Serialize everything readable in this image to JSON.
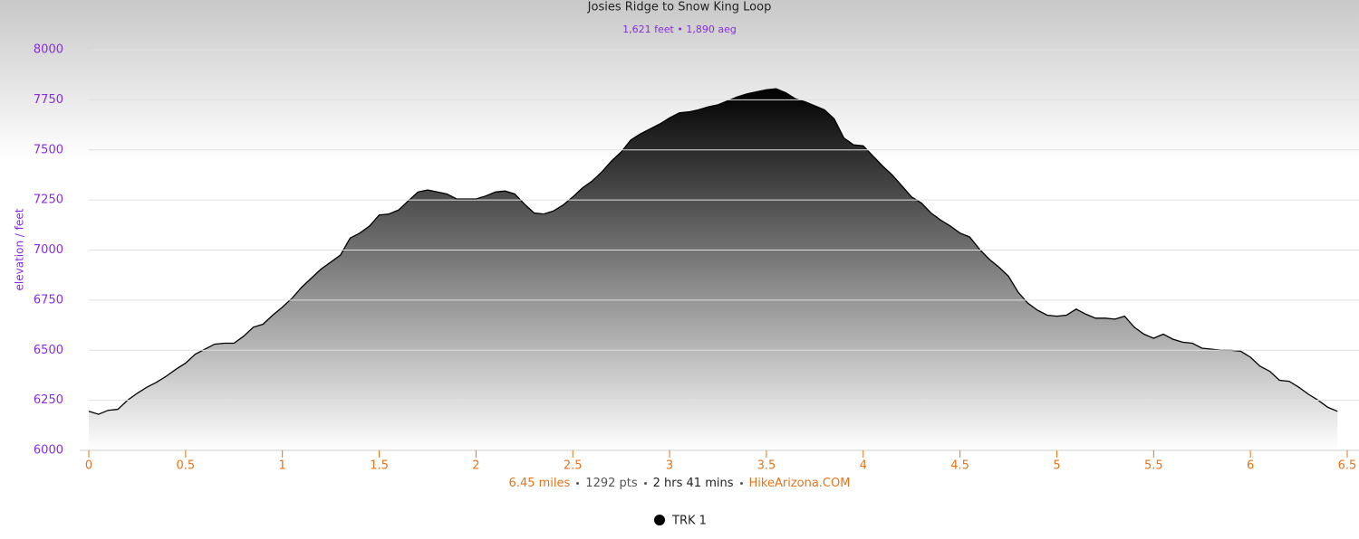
{
  "chart_data": {
    "type": "area",
    "title": "Josies Ridge to Snow King Loop",
    "subtitle": "1,621 feet • 1,890 aeg",
    "y_label": "elevation / feet",
    "footer": [
      "6.45 miles",
      "1292 pts",
      "2 hrs 41 mins",
      "HikeArizona.COM"
    ],
    "xlim": [
      0,
      6.5
    ],
    "xticks": [
      0,
      0.5,
      1,
      1.5,
      2,
      2.5,
      3,
      3.5,
      4,
      4.5,
      5,
      5.5,
      6,
      6.5
    ],
    "ylim": [
      6000,
      8000
    ],
    "yticks": [
      6000,
      6250,
      6500,
      6750,
      7000,
      7250,
      7500,
      7750,
      8000
    ],
    "grid": true,
    "legend": "bottom",
    "x": [
      0,
      0.05,
      0.1,
      0.15,
      0.2,
      0.25,
      0.3,
      0.35,
      0.4,
      0.45,
      0.5,
      0.55,
      0.6,
      0.65,
      0.7,
      0.75,
      0.8,
      0.85,
      0.9,
      0.95,
      1,
      1.05,
      1.1,
      1.15,
      1.2,
      1.25,
      1.3,
      1.35,
      1.4,
      1.45,
      1.5,
      1.55,
      1.6,
      1.65,
      1.7,
      1.75,
      1.8,
      1.85,
      1.9,
      1.95,
      2,
      2.05,
      2.1,
      2.15,
      2.2,
      2.25,
      2.3,
      2.35,
      2.4,
      2.45,
      2.5,
      2.55,
      2.6,
      2.65,
      2.7,
      2.75,
      2.8,
      2.85,
      2.9,
      2.95,
      3,
      3.05,
      3.1,
      3.15,
      3.2,
      3.25,
      3.3,
      3.35,
      3.4,
      3.45,
      3.5,
      3.55,
      3.6,
      3.65,
      3.7,
      3.75,
      3.8,
      3.85,
      3.9,
      3.95,
      4,
      4.05,
      4.1,
      4.15,
      4.2,
      4.25,
      4.3,
      4.35,
      4.4,
      4.45,
      4.5,
      4.55,
      4.6,
      4.65,
      4.7,
      4.75,
      4.8,
      4.85,
      4.9,
      4.95,
      5,
      5.05,
      5.1,
      5.15,
      5.2,
      5.25,
      5.3,
      5.35,
      5.4,
      5.45,
      5.5,
      5.55,
      5.6,
      5.65,
      5.7,
      5.75,
      5.8,
      5.85,
      5.9,
      5.95,
      6,
      6.05,
      6.1,
      6.15,
      6.2,
      6.25,
      6.3,
      6.35,
      6.4,
      6.45
    ],
    "series": [
      {
        "name": "TRK 1",
        "color": "#000000",
        "values": [
          6195,
          6180,
          6200,
          6205,
          6250,
          6285,
          6315,
          6340,
          6370,
          6405,
          6435,
          6480,
          6505,
          6530,
          6535,
          6535,
          6570,
          6615,
          6630,
          6675,
          6715,
          6760,
          6815,
          6860,
          6905,
          6940,
          6975,
          7060,
          7085,
          7120,
          7175,
          7180,
          7200,
          7245,
          7290,
          7300,
          7290,
          7280,
          7255,
          7255,
          7255,
          7270,
          7290,
          7295,
          7280,
          7230,
          7185,
          7180,
          7195,
          7225,
          7265,
          7310,
          7345,
          7390,
          7445,
          7490,
          7550,
          7580,
          7605,
          7630,
          7660,
          7685,
          7690,
          7700,
          7715,
          7725,
          7745,
          7765,
          7780,
          7790,
          7800,
          7805,
          7785,
          7755,
          7740,
          7720,
          7700,
          7655,
          7560,
          7525,
          7520,
          7470,
          7420,
          7375,
          7320,
          7265,
          7235,
          7185,
          7150,
          7120,
          7085,
          7065,
          7005,
          6955,
          6915,
          6870,
          6790,
          6735,
          6700,
          6675,
          6670,
          6675,
          6705,
          6680,
          6660,
          6660,
          6655,
          6670,
          6615,
          6580,
          6560,
          6580,
          6555,
          6540,
          6535,
          6510,
          6505,
          6500,
          6500,
          6495,
          6465,
          6420,
          6395,
          6350,
          6345,
          6315,
          6280,
          6250,
          6215,
          6195
        ]
      }
    ]
  }
}
